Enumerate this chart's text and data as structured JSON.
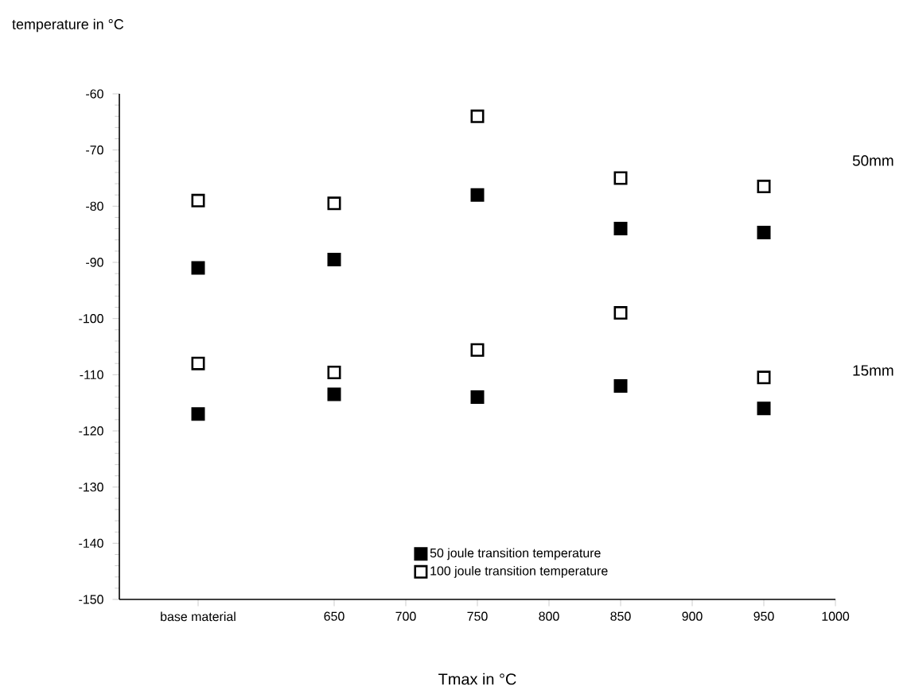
{
  "chart_data": {
    "type": "scatter",
    "ylabel": "temperature in °C",
    "xlabel": "Tmax in °C",
    "xlim": [
      500,
      1000
    ],
    "ylim": [
      -150,
      -60
    ],
    "xticks": [
      {
        "value": 555,
        "label": "base material"
      },
      650,
      700,
      750,
      800,
      850,
      900,
      950,
      1000
    ],
    "yticks": [
      -60,
      -70,
      -80,
      -90,
      -100,
      -110,
      -120,
      -130,
      -140,
      -150
    ],
    "marker": "square",
    "legend": "bottom",
    "grid": false,
    "annotations": [
      "50mm",
      "15mm"
    ],
    "series": [
      {
        "name": "50 joule transition temperature",
        "color": "#000000",
        "x": [
          555,
          650,
          750,
          850,
          950,
          555,
          650,
          750,
          850,
          950
        ],
        "values": [
          -91,
          -89.5,
          -78,
          -84,
          -84.7,
          -117,
          -113.5,
          -114,
          -112,
          -116
        ]
      },
      {
        "name": "100 joule transition temperature",
        "color": "#000000",
        "x": [
          555,
          650,
          750,
          850,
          950,
          555,
          650,
          750,
          850,
          950
        ],
        "values": [
          -79,
          -79.5,
          -64,
          -75,
          -76.5,
          -108,
          -109.6,
          -105.6,
          -99,
          -110.5
        ]
      }
    ]
  }
}
